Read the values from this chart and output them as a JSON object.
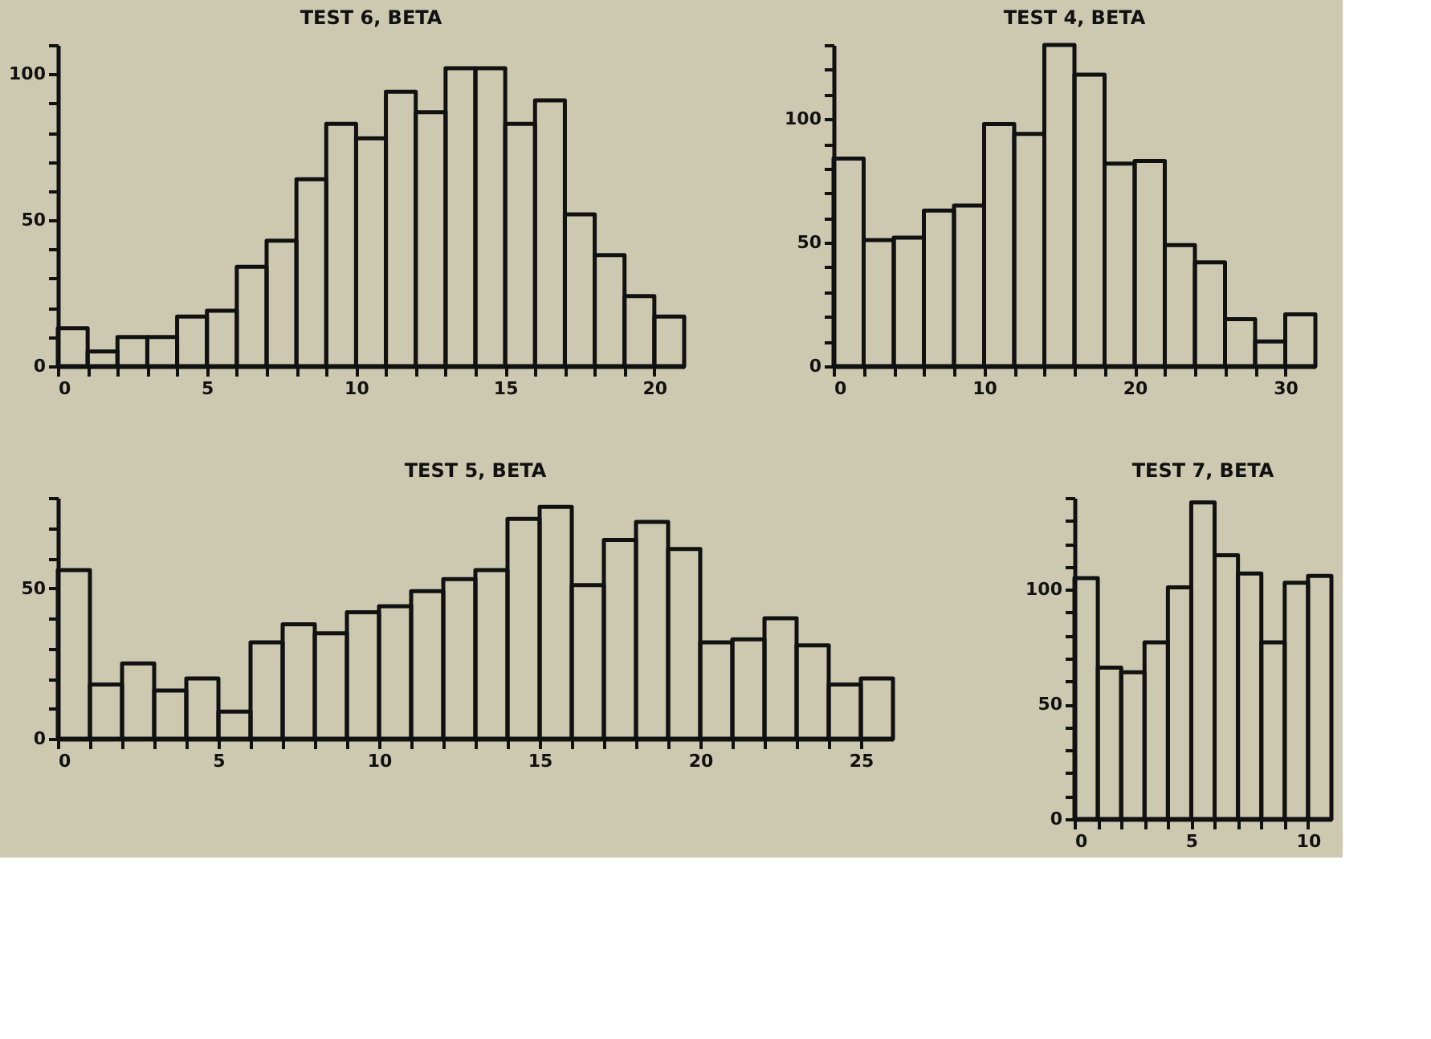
{
  "chart_data": [
    {
      "type": "histogram",
      "title": "TEST 6, BETA",
      "bins": [
        0,
        1,
        2,
        3,
        4,
        5,
        6,
        7,
        8,
        9,
        10,
        11,
        12,
        13,
        14,
        15,
        16,
        17,
        18,
        19,
        20,
        21
      ],
      "values": [
        13,
        5,
        10,
        10,
        17,
        19,
        34,
        43,
        64,
        83,
        78,
        94,
        87,
        102,
        102,
        83,
        91,
        52,
        38,
        24,
        17
      ],
      "color": "#111111",
      "xlim": [
        0,
        21
      ],
      "ylim": [
        0,
        110
      ],
      "xticks": [
        0,
        {
          "value": 1,
          "label": null
        },
        {
          "value": 2,
          "label": null
        },
        {
          "value": 3,
          "label": null
        },
        {
          "value": 4,
          "label": null
        },
        5,
        {
          "value": 6,
          "label": null
        },
        {
          "value": 7,
          "label": null
        },
        {
          "value": 8,
          "label": null
        },
        {
          "value": 9,
          "label": null
        },
        10,
        {
          "value": 11,
          "label": null
        },
        {
          "value": 12,
          "label": null
        },
        {
          "value": 13,
          "label": null
        },
        {
          "value": 14,
          "label": null
        },
        15,
        {
          "value": 16,
          "label": null
        },
        {
          "value": 17,
          "label": null
        },
        {
          "value": 18,
          "label": null
        },
        {
          "value": 19,
          "label": null
        },
        20
      ],
      "yticks": [
        0,
        {
          "value": 10,
          "label": null
        },
        {
          "value": 20,
          "label": null
        },
        {
          "value": 30,
          "label": null
        },
        {
          "value": 40,
          "label": null
        },
        50,
        {
          "value": 60,
          "label": null
        },
        {
          "value": 70,
          "label": null
        },
        {
          "value": 80,
          "label": null
        },
        {
          "value": 90,
          "label": null
        },
        100,
        {
          "value": 110,
          "label": null
        }
      ]
    },
    {
      "type": "histogram",
      "title": "TEST 4, BETA",
      "bins": [
        0,
        2,
        4,
        6,
        8,
        10,
        12,
        14,
        16,
        18,
        20,
        22,
        24,
        26,
        28,
        30,
        32
      ],
      "values": [
        84,
        51,
        52,
        63,
        65,
        98,
        94,
        130,
        118,
        82,
        83,
        49,
        42,
        19,
        10,
        21
      ],
      "color": "#111111",
      "xlim": [
        0,
        32
      ],
      "ylim": [
        0,
        130
      ],
      "xticks": [
        0,
        {
          "value": 2,
          "label": null
        },
        {
          "value": 4,
          "label": null
        },
        {
          "value": 6,
          "label": null
        },
        {
          "value": 8,
          "label": null
        },
        10,
        {
          "value": 12,
          "label": null
        },
        {
          "value": 14,
          "label": null
        },
        {
          "value": 16,
          "label": null
        },
        {
          "value": 18,
          "label": null
        },
        20,
        {
          "value": 22,
          "label": null
        },
        {
          "value": 24,
          "label": null
        },
        {
          "value": 26,
          "label": null
        },
        {
          "value": 28,
          "label": null
        },
        30
      ],
      "yticks": [
        0,
        {
          "value": 10,
          "label": null
        },
        {
          "value": 20,
          "label": null
        },
        {
          "value": 30,
          "label": null
        },
        {
          "value": 40,
          "label": null
        },
        50,
        {
          "value": 60,
          "label": null
        },
        {
          "value": 70,
          "label": null
        },
        {
          "value": 80,
          "label": null
        },
        {
          "value": 90,
          "label": null
        },
        100,
        {
          "value": 110,
          "label": null
        },
        {
          "value": 120,
          "label": null
        },
        {
          "value": 130,
          "label": null
        }
      ]
    },
    {
      "type": "histogram",
      "title": "TEST 5, BETA",
      "bins": [
        0,
        1,
        2,
        3,
        4,
        5,
        6,
        7,
        8,
        9,
        10,
        11,
        12,
        13,
        14,
        15,
        16,
        17,
        18,
        19,
        20,
        21,
        22,
        23,
        24,
        25,
        26
      ],
      "values": [
        56,
        18,
        25,
        16,
        20,
        9,
        32,
        38,
        35,
        42,
        44,
        49,
        53,
        56,
        73,
        77,
        51,
        66,
        72,
        63,
        32,
        33,
        40,
        31,
        18,
        20
      ],
      "color": "#111111",
      "xlim": [
        0,
        26
      ],
      "ylim": [
        0,
        80
      ],
      "xticks": [
        0,
        {
          "value": 1,
          "label": null
        },
        {
          "value": 2,
          "label": null
        },
        {
          "value": 3,
          "label": null
        },
        {
          "value": 4,
          "label": null
        },
        5,
        {
          "value": 6,
          "label": null
        },
        {
          "value": 7,
          "label": null
        },
        {
          "value": 8,
          "label": null
        },
        {
          "value": 9,
          "label": null
        },
        10,
        {
          "value": 11,
          "label": null
        },
        {
          "value": 12,
          "label": null
        },
        {
          "value": 13,
          "label": null
        },
        {
          "value": 14,
          "label": null
        },
        15,
        {
          "value": 16,
          "label": null
        },
        {
          "value": 17,
          "label": null
        },
        {
          "value": 18,
          "label": null
        },
        {
          "value": 19,
          "label": null
        },
        20,
        {
          "value": 21,
          "label": null
        },
        {
          "value": 22,
          "label": null
        },
        {
          "value": 23,
          "label": null
        },
        {
          "value": 24,
          "label": null
        },
        25
      ],
      "yticks": [
        0,
        {
          "value": 10,
          "label": null
        },
        {
          "value": 20,
          "label": null
        },
        {
          "value": 30,
          "label": null
        },
        {
          "value": 40,
          "label": null
        },
        50,
        {
          "value": 60,
          "label": null
        },
        {
          "value": 70,
          "label": null
        },
        {
          "value": 80,
          "label": null
        }
      ]
    },
    {
      "type": "histogram",
      "title": "TEST 7, BETA",
      "bins": [
        0,
        1,
        2,
        3,
        4,
        5,
        6,
        7,
        8,
        9,
        10,
        11
      ],
      "values": [
        105,
        66,
        64,
        77,
        101,
        138,
        115,
        107,
        77,
        103,
        106
      ],
      "color": "#111111",
      "xlim": [
        0,
        11
      ],
      "ylim": [
        0,
        140
      ],
      "xticks": [
        0,
        {
          "value": 1,
          "label": null
        },
        {
          "value": 2,
          "label": null
        },
        {
          "value": 3,
          "label": null
        },
        {
          "value": 4,
          "label": null
        },
        5,
        {
          "value": 6,
          "label": null
        },
        {
          "value": 7,
          "label": null
        },
        {
          "value": 8,
          "label": null
        },
        {
          "value": 9,
          "label": null
        },
        10
      ],
      "yticks": [
        0,
        {
          "value": 10,
          "label": null
        },
        {
          "value": 20,
          "label": null
        },
        {
          "value": 30,
          "label": null
        },
        {
          "value": 40,
          "label": null
        },
        50,
        {
          "value": 60,
          "label": null
        },
        {
          "value": 70,
          "label": null
        },
        {
          "value": 80,
          "label": null
        },
        {
          "value": 90,
          "label": null
        },
        100,
        {
          "value": 110,
          "label": null
        },
        {
          "value": 120,
          "label": null
        },
        {
          "value": 130,
          "label": null
        },
        {
          "value": 140,
          "label": null
        }
      ]
    }
  ]
}
